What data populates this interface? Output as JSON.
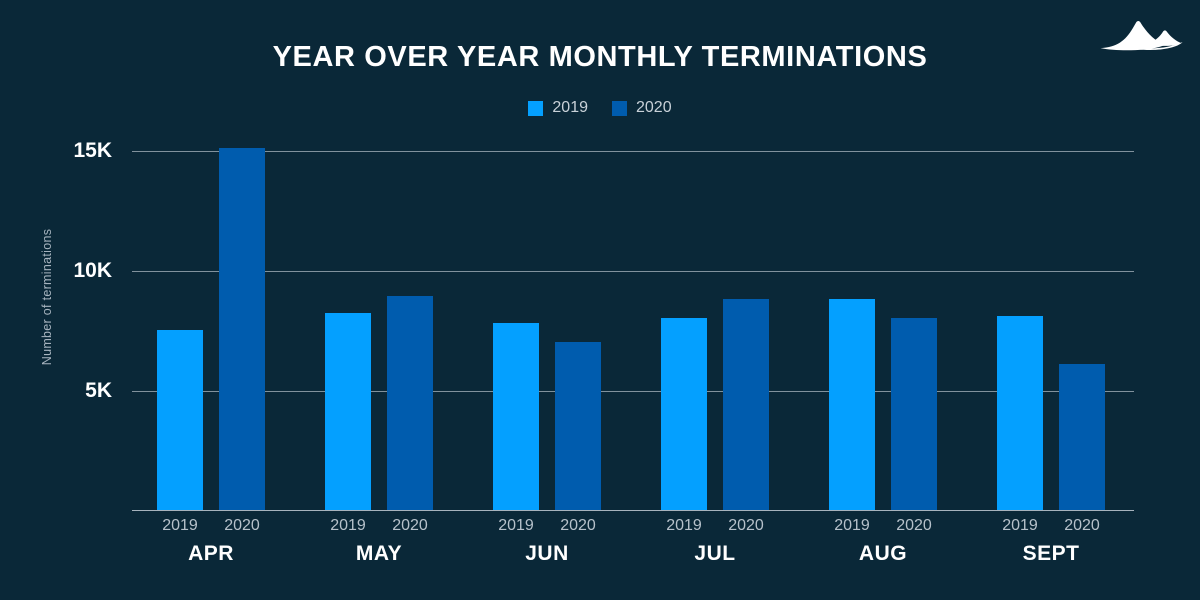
{
  "header": {
    "title": "YEAR OVER YEAR MONTHLY TERMINATIONS",
    "logo": "dunes-logo"
  },
  "colors": {
    "background": "#0A2838",
    "series_2019": "#04A0FF",
    "series_2020": "#005CAE",
    "gridline": "#97A5AF",
    "tick_label": "#FFFFFF",
    "year_label": "#B6C1CA"
  },
  "legend": [
    {
      "label": "2019",
      "color": "#04A0FF"
    },
    {
      "label": "2020",
      "color": "#005CAE"
    }
  ],
  "chart_data": {
    "type": "bar",
    "title": "YEAR OVER YEAR MONTHLY TERMINATIONS",
    "xlabel": "",
    "ylabel": "Number of terminations",
    "categories": [
      "APR",
      "MAY",
      "JUN",
      "JUL",
      "AUG",
      "SEPT"
    ],
    "series": [
      {
        "name": "2019",
        "color": "#04A0FF",
        "values": [
          7500,
          8200,
          7800,
          8000,
          8800,
          8100
        ]
      },
      {
        "name": "2020",
        "color": "#005CAE",
        "values": [
          15100,
          8900,
          7000,
          8800,
          8000,
          6100
        ]
      }
    ],
    "y_ticks": [
      "5K",
      "10K",
      "15K"
    ],
    "y_tick_values": [
      5000,
      10000,
      15000
    ],
    "ylim": [
      0,
      15000
    ],
    "grid": "horizontal",
    "legend_position": "top"
  }
}
